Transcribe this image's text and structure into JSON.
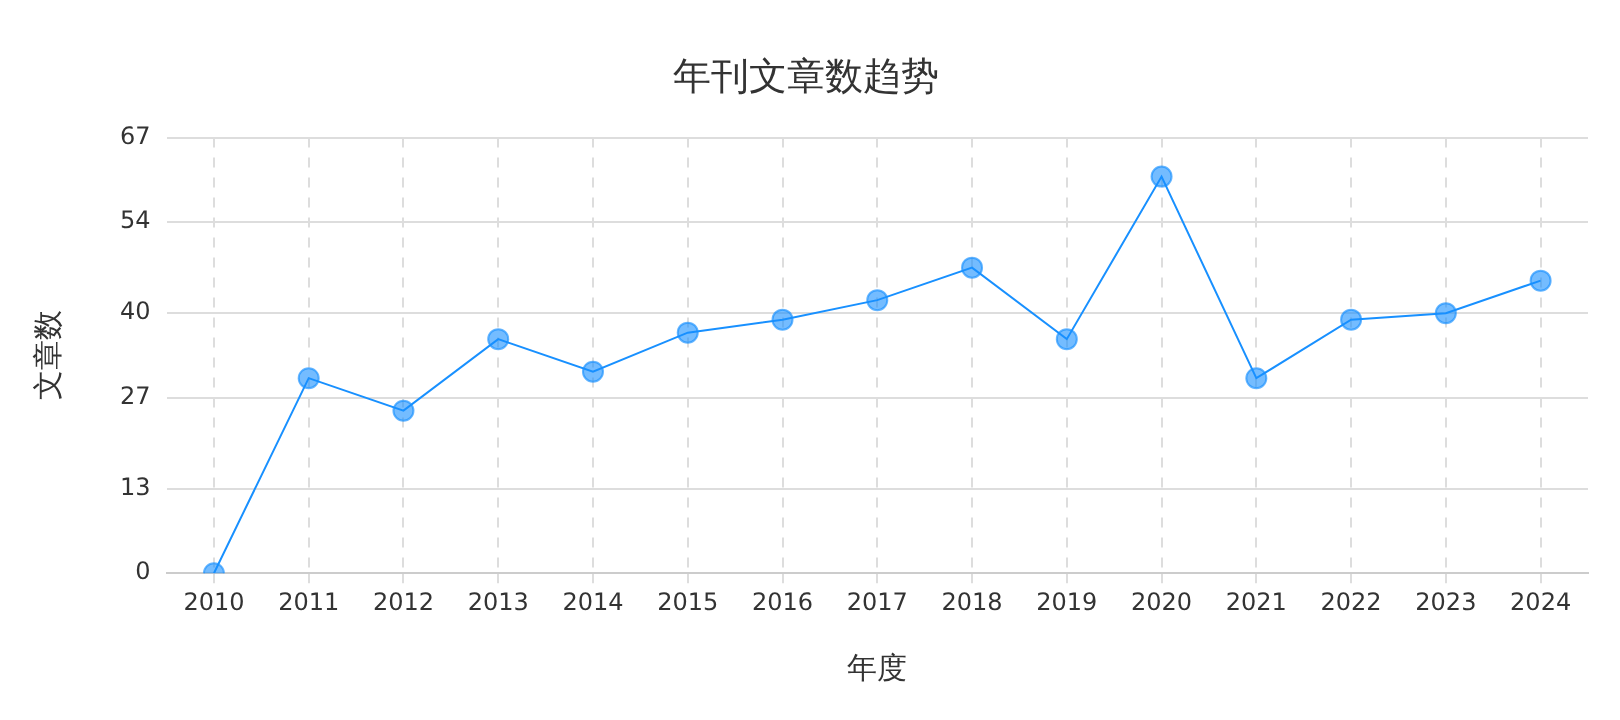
{
  "chart_data": {
    "type": "line",
    "title": "年刊文章数趋势",
    "xlabel": "年度",
    "ylabel": "文章数",
    "categories": [
      "2010",
      "2011",
      "2012",
      "2013",
      "2014",
      "2015",
      "2016",
      "2017",
      "2018",
      "2019",
      "2020",
      "2021",
      "2022",
      "2023",
      "2024"
    ],
    "series": [
      {
        "color": "#1890ff",
        "values": [
          0,
          30,
          25,
          36,
          31,
          37,
          39,
          42,
          47,
          36,
          61,
          30,
          39,
          40,
          45
        ]
      }
    ],
    "ylim": [
      0,
      67
    ],
    "yticks": [
      0,
      13,
      27,
      40,
      54,
      67
    ],
    "grid": true,
    "marker": "circle",
    "line_style": "solid"
  }
}
